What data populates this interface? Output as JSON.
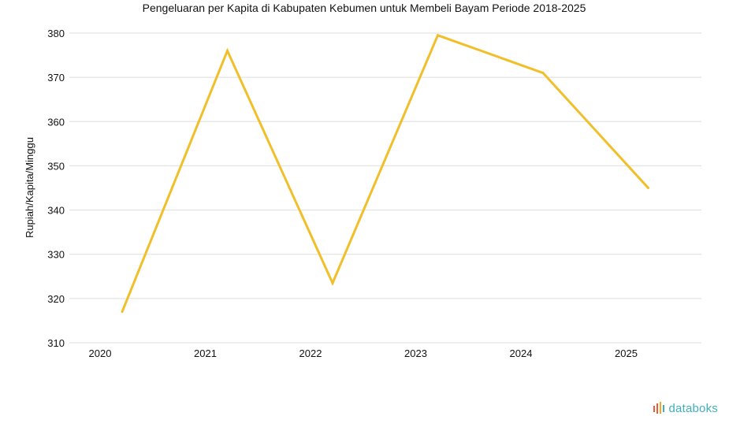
{
  "chart_data": {
    "type": "line",
    "title": "Pengeluaran per Kapita di Kabupaten Kebumen untuk Membeli Bayam Periode 2018-2025",
    "xlabel": "",
    "ylabel": "Rupiah/Kapita/Minggu",
    "categories": [
      "2020",
      "2021",
      "2022",
      "2023",
      "2024",
      "2025"
    ],
    "series": [
      {
        "values": [
          317,
          376,
          323.5,
          379.5,
          371,
          345
        ],
        "color": "#f0bf2a"
      }
    ],
    "ylim": [
      310,
      380
    ],
    "yticks": [
      310,
      320,
      330,
      340,
      350,
      360,
      370,
      380
    ],
    "grid": true
  },
  "brand": {
    "name": "databoks",
    "color": "#3fb0ba",
    "icon": "databoks-logo-icon",
    "icon_colors": [
      "#f0583a",
      "#f5a623",
      "#3fb0ba"
    ]
  }
}
